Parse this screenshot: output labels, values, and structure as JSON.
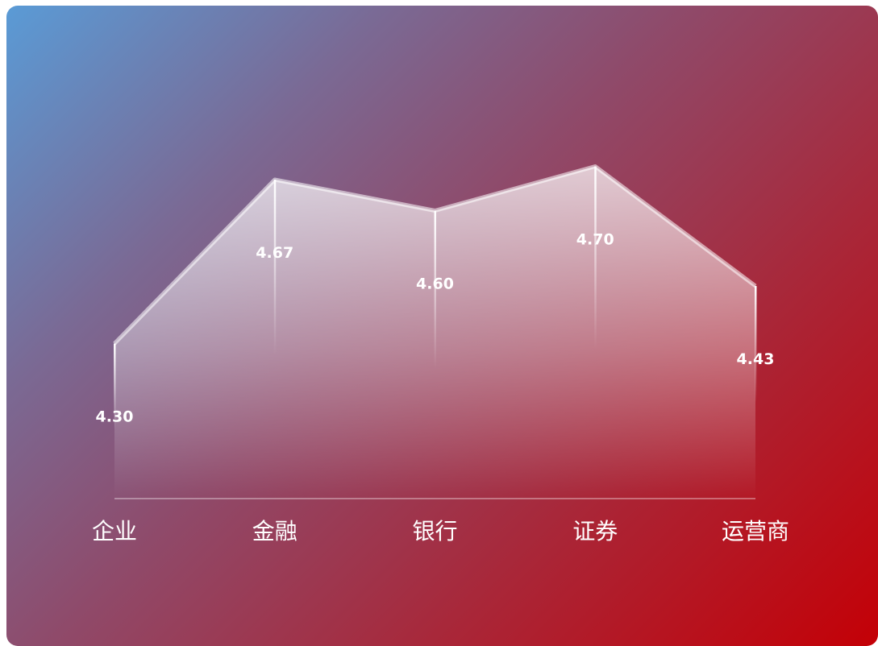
{
  "chart_data": {
    "type": "area",
    "title": "",
    "xlabel": "",
    "ylabel": "",
    "categories": [
      "企业",
      "金融",
      "银行",
      "证券",
      "运营商"
    ],
    "series": [
      {
        "values": [
          4.3,
          4.67,
          4.6,
          4.7,
          4.43
        ],
        "labels": [
          "4.30",
          "4.67",
          "4.60",
          "4.70",
          "4.43"
        ]
      }
    ],
    "ylim": [
      3.95,
      4.73
    ],
    "grid": false,
    "legend": "none"
  }
}
